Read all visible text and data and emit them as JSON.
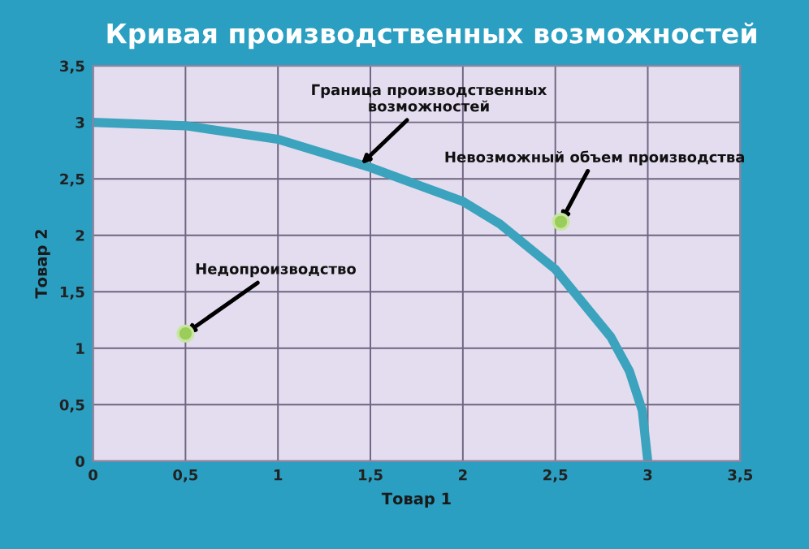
{
  "chart_data": {
    "type": "line",
    "title": "Кривая производственных возможностей",
    "xlabel": "Товар 1",
    "ylabel": "Товар 2",
    "series": [
      {
        "color": "#3ba3bd",
        "x": [
          0,
          0.5,
          1,
          1.5,
          2,
          2.2,
          2.5,
          2.8,
          2.9,
          2.97,
          3
        ],
        "values": [
          3,
          2.97,
          2.85,
          2.6,
          2.3,
          2.1,
          1.7,
          1.1,
          0.8,
          0.45,
          0
        ]
      },
      {
        "type": "scatter",
        "color": "#9acd5a",
        "x": [
          0.5,
          2.53
        ],
        "values": [
          1.13,
          2.12
        ]
      }
    ],
    "annotations": [
      {
        "text": "Граница производственных\nвозможностей",
        "x": 1.45,
        "y": 2.63
      },
      {
        "text": "Невозможный объем производства",
        "x": 2.53,
        "y": 2.12
      },
      {
        "text": "Недопроизводство",
        "x": 0.5,
        "y": 1.13
      }
    ],
    "xlim": [
      0,
      3.5
    ],
    "ylim": [
      0,
      3.5
    ],
    "xticks": [
      0,
      {
        "value": 0.5,
        "label": "0,5"
      },
      1,
      {
        "value": 1.5,
        "label": "1,5"
      },
      2,
      {
        "value": 2.5,
        "label": "2,5"
      },
      3,
      {
        "value": 3.5,
        "label": "3,5"
      }
    ],
    "yticks": [
      0,
      {
        "value": 0.5,
        "label": "0,5"
      },
      1,
      {
        "value": 1.5,
        "label": "1,5"
      },
      2,
      {
        "value": 2.5,
        "label": "2,5"
      },
      3,
      {
        "value": 3.5,
        "label": "3,5"
      }
    ],
    "grid": true
  }
}
